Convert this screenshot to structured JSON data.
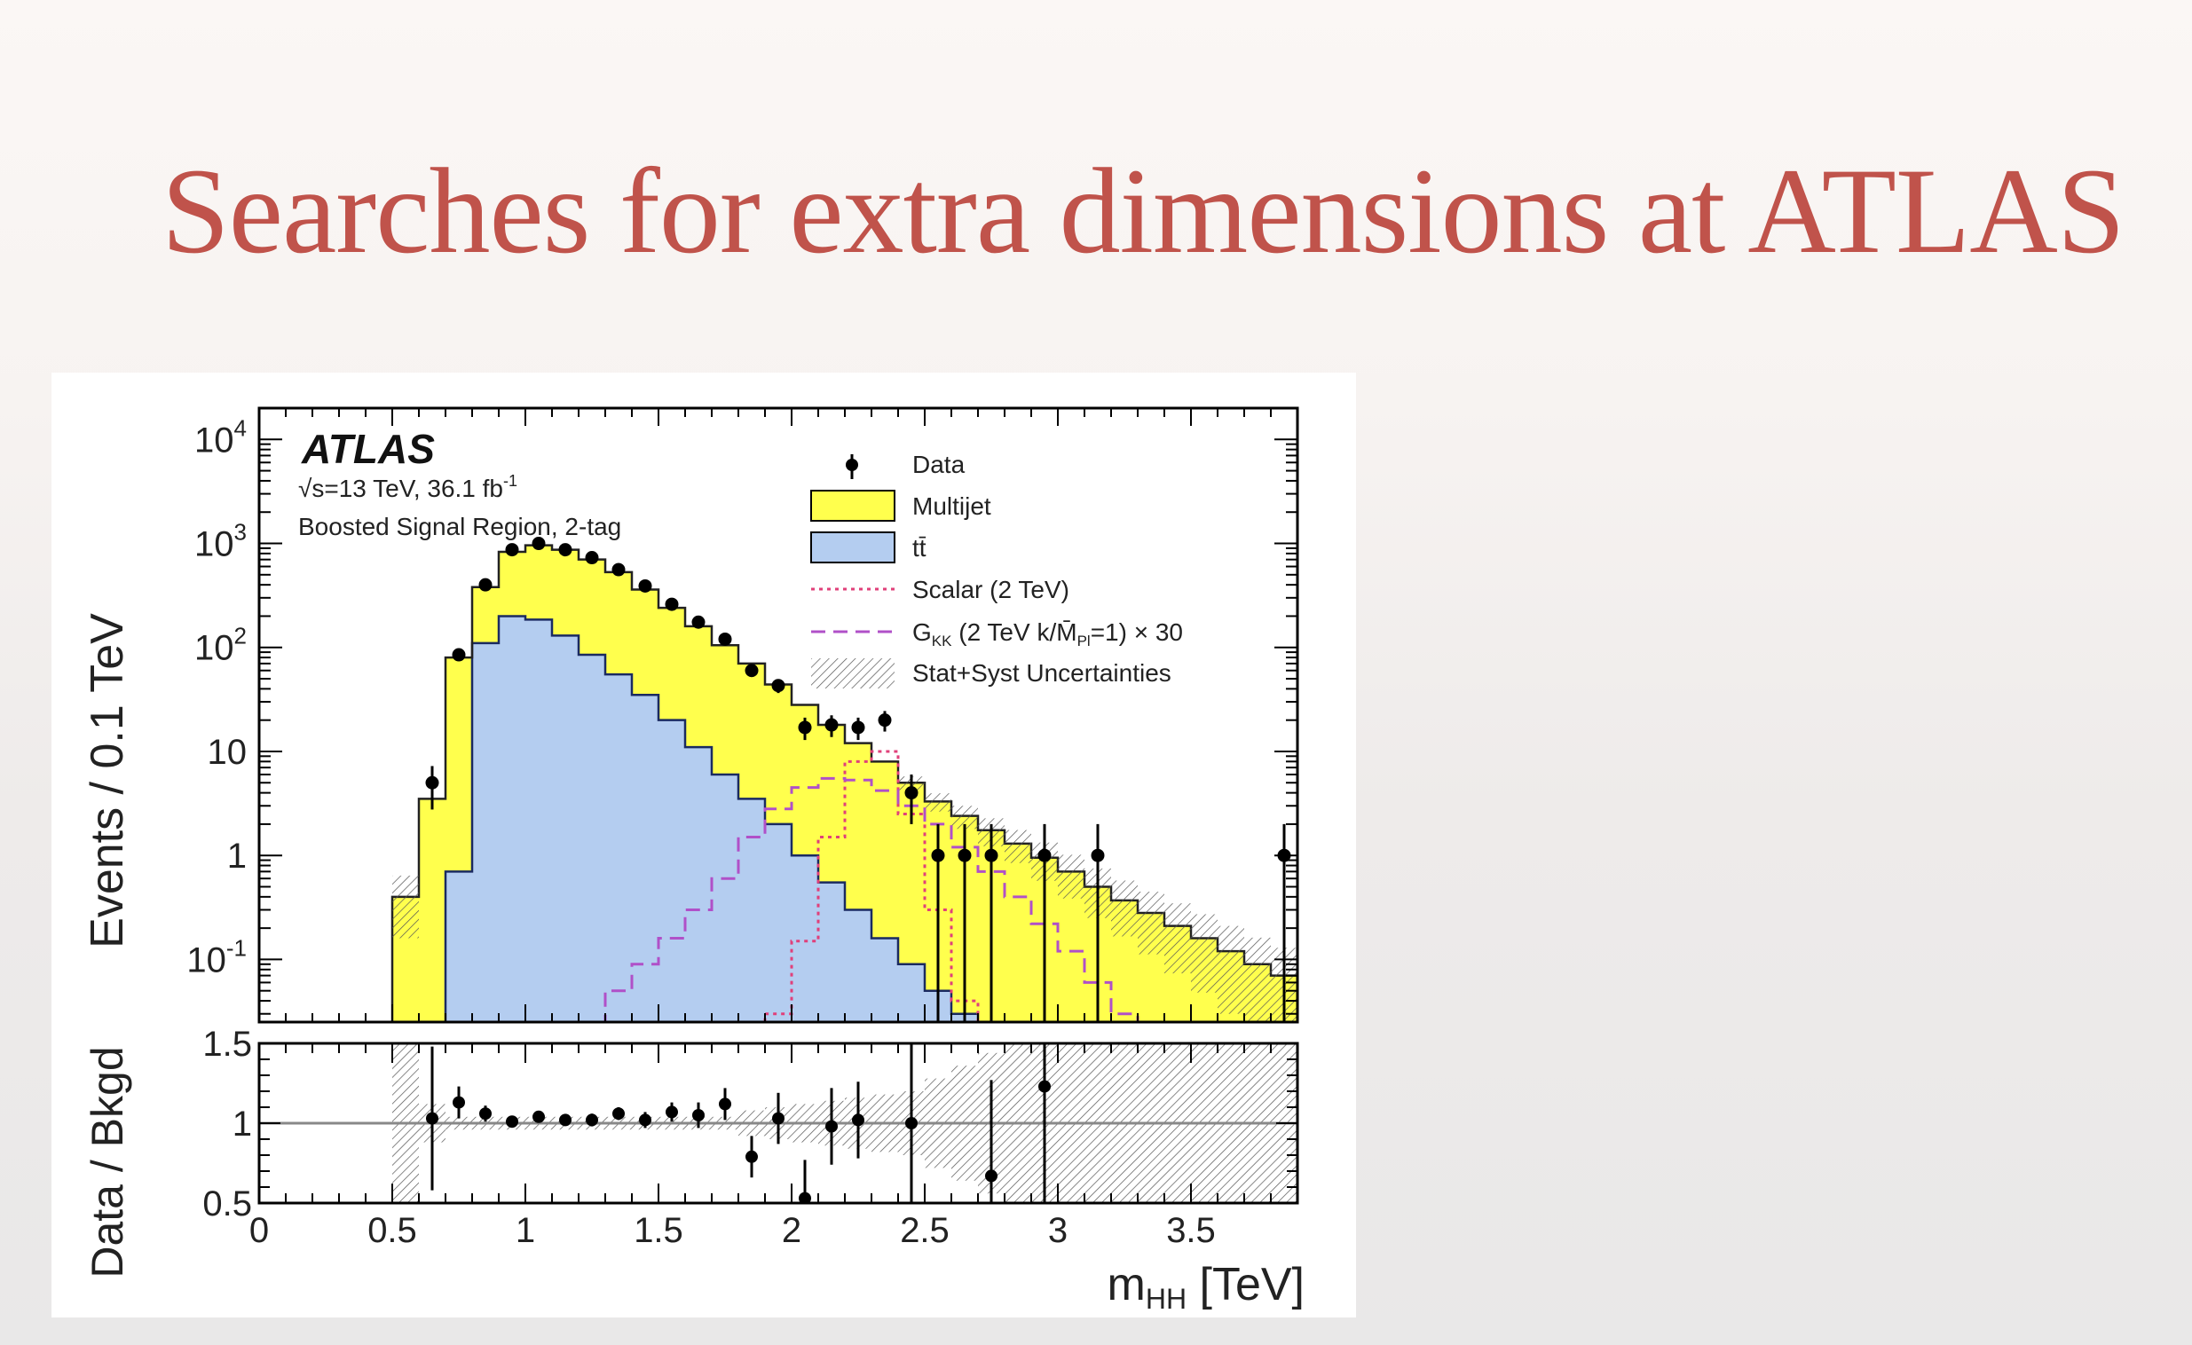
{
  "slide": {
    "title": "Searches for extra dimensions at ATLAS"
  },
  "chart_data": {
    "type": "bar",
    "stacked": true,
    "experiment_label": "ATLAS",
    "luminosity_label": "√s=13 TeV, 36.1 fb",
    "luminosity_superscript": "-1",
    "region_label": "Boosted Signal Region, 2-tag",
    "ylabel": "Events / 0.1 TeV",
    "xlabel": "m",
    "xlabel_subscript": "HH",
    "xlabel_unit": " [TeV]",
    "ratio_ylabel": "Data / Bkgd",
    "xlim": [
      0,
      3.9
    ],
    "ylim": [
      0.025,
      20000
    ],
    "yscale": "log",
    "ratio_ylim": [
      0.5,
      1.5
    ],
    "xticks": [
      "0",
      "0.5",
      "1",
      "1.5",
      "2",
      "2.5",
      "3",
      "3.5"
    ],
    "yticks": [
      {
        "base": "10",
        "exp": "4",
        "value": 10000
      },
      {
        "base": "10",
        "exp": "3",
        "value": 1000
      },
      {
        "base": "10",
        "exp": "2",
        "value": 100
      },
      {
        "base": "10",
        "exp": "",
        "value": 10
      },
      {
        "base": "1",
        "exp": "",
        "value": 1
      },
      {
        "base": "10",
        "exp": "-1",
        "value": 0.1
      }
    ],
    "ratio_yticks": [
      "1.5",
      "1",
      "0.5"
    ],
    "legend": {
      "position": "top-right",
      "data": "Data",
      "multijet": "Multijet",
      "ttbar": "tt̄",
      "scalar": "Scalar (2 TeV)",
      "graviton": "G",
      "graviton_sub": "KK",
      "graviton_rest": " (2 TeV k/M̄",
      "graviton_rest_sub": "Pl",
      "graviton_tail": "=1) × 30",
      "unc": "Stat+Syst Uncertainties"
    },
    "colors": {
      "multijet": "#ffff4d",
      "ttbar": "#b4cdf0",
      "scalar": "#e0407a",
      "graviton": "#b050c8",
      "data": "#000000",
      "title": "#c0534b"
    },
    "bin_width": 0.1,
    "bin_low": [
      0.5,
      0.6,
      0.7,
      0.8,
      0.9,
      1.0,
      1.1,
      1.2,
      1.3,
      1.4,
      1.5,
      1.6,
      1.7,
      1.8,
      1.9,
      2.0,
      2.1,
      2.2,
      2.3,
      2.4,
      2.5,
      2.6,
      2.7,
      2.8,
      2.9,
      3.0,
      3.1,
      3.2,
      3.3,
      3.4,
      3.5,
      3.6,
      3.7,
      3.8
    ],
    "ttbar": [
      0,
      0,
      0.7,
      110,
      200,
      185,
      130,
      85,
      55,
      35,
      20,
      11,
      6,
      3.5,
      2.0,
      1.0,
      0.55,
      0.3,
      0.16,
      0.09,
      0.05,
      0.03,
      0.02,
      0.012,
      0.007,
      0.004,
      0.003,
      0.002,
      0.0015,
      0.001,
      0.0008,
      0.0006,
      0.0005,
      0.0004
    ],
    "total_bkg": [
      0.4,
      3.5,
      80,
      380,
      830,
      960,
      870,
      700,
      530,
      360,
      240,
      160,
      105,
      70,
      44,
      28,
      18,
      12,
      8,
      5.0,
      3.3,
      2.4,
      1.75,
      1.3,
      0.95,
      0.7,
      0.5,
      0.37,
      0.28,
      0.21,
      0.16,
      0.12,
      0.09,
      0.07
    ],
    "scalar": [
      0,
      0,
      0,
      0,
      0,
      0,
      0,
      0,
      0,
      0,
      0,
      0,
      0,
      0.01,
      0.03,
      0.15,
      1.5,
      8,
      10,
      2.5,
      0.3,
      0.04,
      0,
      0,
      0,
      0,
      0,
      0,
      0,
      0,
      0,
      0,
      0,
      0
    ],
    "graviton": [
      0,
      0,
      0,
      0,
      0,
      0,
      0,
      0.02,
      0.05,
      0.09,
      0.16,
      0.3,
      0.6,
      1.5,
      2.8,
      4.5,
      5.5,
      5.3,
      4.2,
      3.0,
      2.0,
      1.2,
      0.7,
      0.4,
      0.22,
      0.12,
      0.06,
      0.03,
      0.015,
      0.008,
      0.004,
      0.002,
      0.001,
      0
    ],
    "data_x": [
      0.65,
      0.75,
      0.85,
      0.95,
      1.05,
      1.15,
      1.25,
      1.35,
      1.45,
      1.55,
      1.65,
      1.75,
      1.85,
      1.95,
      2.05,
      2.15,
      2.25,
      2.35,
      2.45,
      2.55,
      2.65,
      2.75,
      2.95,
      3.15,
      3.85
    ],
    "data_y": [
      5,
      85,
      400,
      870,
      1000,
      870,
      730,
      560,
      390,
      260,
      175,
      120,
      60,
      43,
      17,
      18,
      17,
      20,
      4,
      1,
      1,
      1,
      1,
      1,
      1
    ],
    "ratio_x": [
      0.65,
      0.75,
      0.85,
      0.95,
      1.05,
      1.15,
      1.25,
      1.35,
      1.45,
      1.55,
      1.65,
      1.75,
      1.85,
      1.95,
      2.05,
      2.15,
      2.25,
      2.45,
      2.75,
      2.95
    ],
    "ratio_y": [
      1.03,
      1.13,
      1.06,
      1.01,
      1.04,
      1.02,
      1.02,
      1.06,
      1.02,
      1.07,
      1.05,
      1.12,
      0.79,
      1.03,
      0.53,
      0.98,
      1.02,
      1.0,
      0.67,
      1.23
    ],
    "ratio_err": [
      0.45,
      0.1,
      0.05,
      0.03,
      0.03,
      0.03,
      0.04,
      0.04,
      0.05,
      0.06,
      0.08,
      0.1,
      0.13,
      0.16,
      0.24,
      0.24,
      0.24,
      0.5,
      0.6,
      1.0
    ]
  }
}
